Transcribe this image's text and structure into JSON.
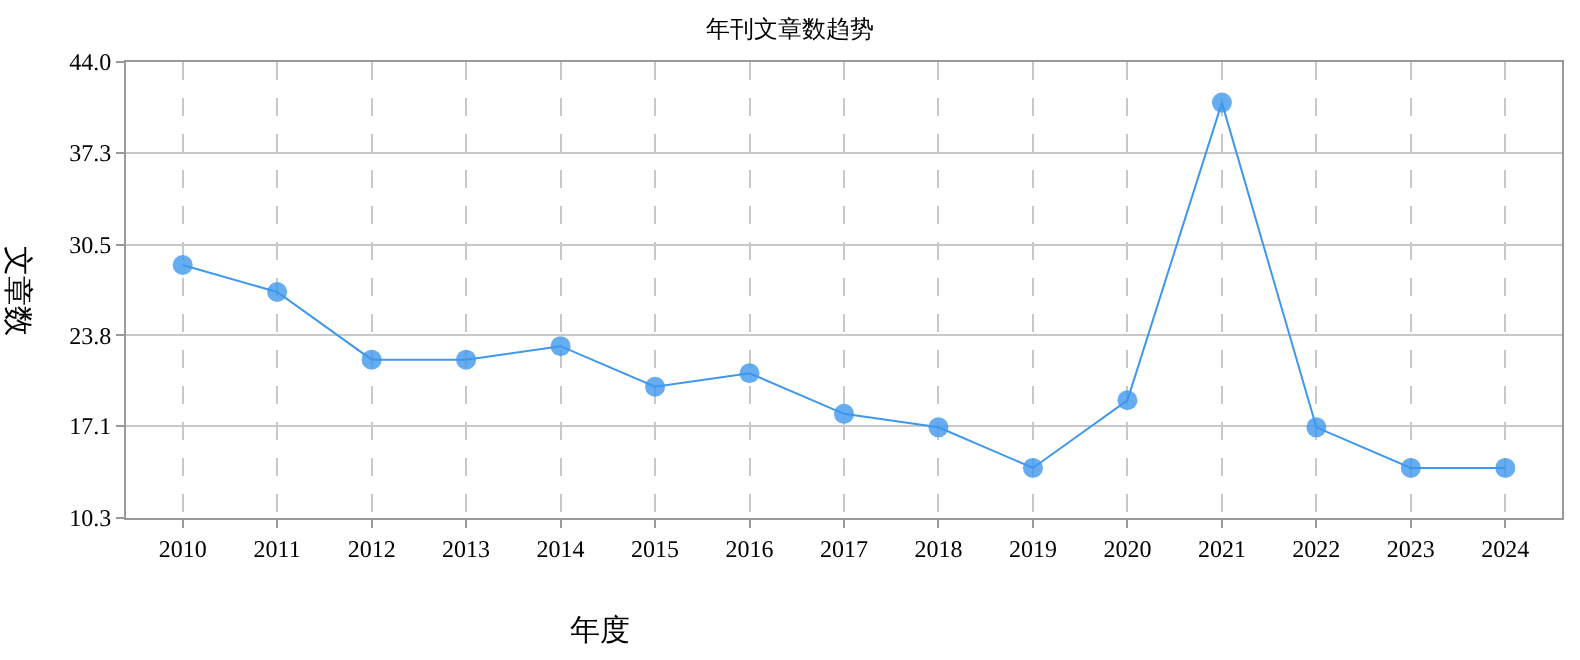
{
  "chart_data": {
    "type": "line",
    "title": "年刊文章数趋势",
    "xlabel": "年度",
    "ylabel": "文章数",
    "categories": [
      "2010",
      "2011",
      "2012",
      "2013",
      "2014",
      "2015",
      "2016",
      "2017",
      "2018",
      "2019",
      "2020",
      "2021",
      "2022",
      "2023",
      "2024"
    ],
    "series": [
      {
        "color": "#3f97ee",
        "values": [
          29,
          27,
          22,
          22,
          23,
          20,
          21,
          18,
          17,
          14,
          19,
          41,
          17,
          14,
          14
        ]
      }
    ],
    "ylim": [
      10.3,
      44
    ],
    "yticks": [
      {
        "value": 10.3,
        "label": "10.3"
      },
      17.1,
      23.8,
      30.5,
      37.3,
      {
        "value": 44,
        "label": "44.0"
      }
    ],
    "grid": true,
    "marker": "circle",
    "line_style": "solid"
  }
}
